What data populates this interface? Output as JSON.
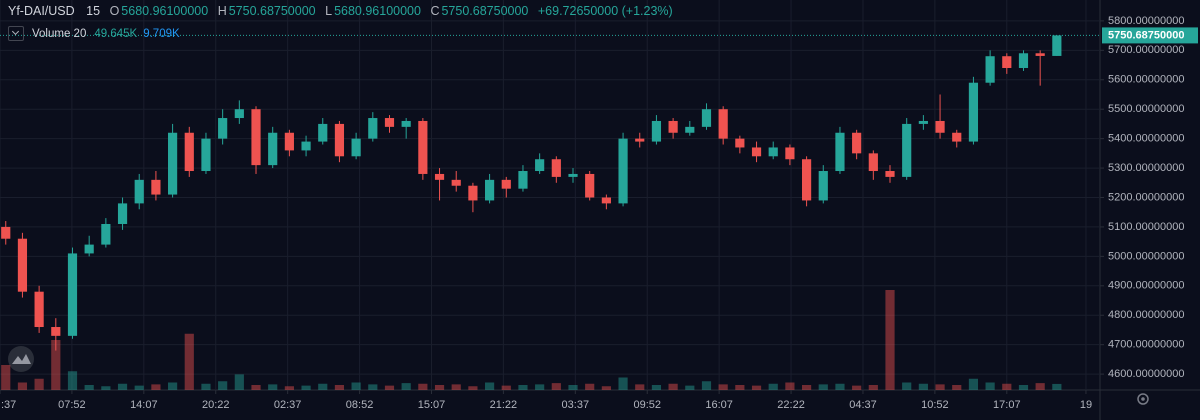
{
  "header": {
    "symbol": "Yf-DAI/USD",
    "interval": "15",
    "open_label": "O",
    "open": {
      "value": 5680.961,
      "label": "5680.96100000"
    },
    "high_label": "H",
    "high": {
      "value": 5750.6875,
      "label": "5750.68750000"
    },
    "low_label": "L",
    "low": {
      "value": 5680.961,
      "label": "5680.96100000"
    },
    "close_label": "C",
    "close": {
      "value": 5750.6875,
      "label": "5750.68750000"
    },
    "change": "+69.72650000 (+1.23%)",
    "volume_title": "Volume 20",
    "volume_ma": "49.645K",
    "volume_last": "9.709K"
  },
  "chart_data": {
    "type": "candlestick",
    "up_color": "#26a69a",
    "down_color": "#ef5350",
    "grid": true,
    "xlim": [
      0,
      95.6
    ],
    "ylim": [
      4546,
      5871
    ],
    "yticks": [
      {
        "value": 4600,
        "label": "4600.00000000"
      },
      {
        "value": 4700,
        "label": "4700.00000000"
      },
      {
        "value": 4800,
        "label": "4800.00000000"
      },
      {
        "value": 4900,
        "label": "4900.00000000"
      },
      {
        "value": 5000,
        "label": "5000.00000000"
      },
      {
        "value": 5100,
        "label": "5100.00000000"
      },
      {
        "value": 5200,
        "label": "5200.00000000"
      },
      {
        "value": 5300,
        "label": "5300.00000000"
      },
      {
        "value": 5400,
        "label": "5400.00000000"
      },
      {
        "value": 5500,
        "label": "5500.00000000"
      },
      {
        "value": 5600,
        "label": "5600.00000000"
      },
      {
        "value": 5700,
        "label": "5700.00000000"
      },
      {
        "value": 5800,
        "label": "5800.00000000"
      }
    ],
    "xticks": [
      {
        "value": 0,
        "label": ":37"
      },
      {
        "value": 6.25,
        "label": "07:52"
      },
      {
        "value": 12.5,
        "label": "14:07"
      },
      {
        "value": 18.75,
        "label": "20:22"
      },
      {
        "value": 25,
        "label": "02:37"
      },
      {
        "value": 31.25,
        "label": "08:52"
      },
      {
        "value": 37.5,
        "label": "15:07"
      },
      {
        "value": 43.75,
        "label": "21:22"
      },
      {
        "value": 50,
        "label": "03:37"
      },
      {
        "value": 56.25,
        "label": "09:52"
      },
      {
        "value": 62.5,
        "label": "16:07"
      },
      {
        "value": 68.75,
        "label": "22:22"
      },
      {
        "value": 75,
        "label": "04:37"
      },
      {
        "value": 81.25,
        "label": "10:52"
      },
      {
        "value": 87.5,
        "label": "17:07"
      },
      {
        "value": 94.38,
        "label": "19"
      }
    ],
    "last_price": {
      "value": 5750.6875,
      "label": "5750.68750000"
    },
    "x": [
      0.5,
      1.95,
      3.4,
      4.85,
      6.3,
      7.75,
      9.2,
      10.65,
      12.1,
      13.55,
      15,
      16.45,
      17.9,
      19.35,
      20.8,
      22.25,
      23.7,
      25.15,
      26.6,
      28.05,
      29.5,
      30.95,
      32.4,
      33.85,
      35.3,
      36.75,
      38.2,
      39.65,
      41.1,
      42.55,
      44,
      45.45,
      46.9,
      48.35,
      49.8,
      51.25,
      52.7,
      54.15,
      55.6,
      57.05,
      58.5,
      59.95,
      61.4,
      62.85,
      64.3,
      65.75,
      67.2,
      68.65,
      70.1,
      71.55,
      73,
      74.45,
      75.9,
      77.35,
      78.8,
      80.25,
      81.7,
      83.15,
      84.6,
      86.05,
      87.5,
      88.95,
      90.4,
      91.85
    ],
    "candles": [
      [
        5100,
        5120,
        5040,
        5060
      ],
      [
        5060,
        5080,
        4860,
        4880
      ],
      [
        4880,
        4900,
        4740,
        4760
      ],
      [
        4760,
        4790,
        4680,
        4730
      ],
      [
        4730,
        5030,
        4720,
        5010
      ],
      [
        5010,
        5070,
        5000,
        5040
      ],
      [
        5040,
        5130,
        5030,
        5110
      ],
      [
        5110,
        5200,
        5090,
        5180
      ],
      [
        5180,
        5280,
        5160,
        5260
      ],
      [
        5260,
        5290,
        5190,
        5210
      ],
      [
        5210,
        5450,
        5200,
        5420
      ],
      [
        5420,
        5440,
        5270,
        5290
      ],
      [
        5290,
        5420,
        5280,
        5400
      ],
      [
        5400,
        5500,
        5380,
        5470
      ],
      [
        5470,
        5530,
        5450,
        5500
      ],
      [
        5500,
        5510,
        5280,
        5310
      ],
      [
        5310,
        5440,
        5300,
        5420
      ],
      [
        5420,
        5430,
        5340,
        5360
      ],
      [
        5360,
        5410,
        5340,
        5390
      ],
      [
        5390,
        5470,
        5380,
        5450
      ],
      [
        5450,
        5460,
        5320,
        5340
      ],
      [
        5340,
        5420,
        5330,
        5400
      ],
      [
        5400,
        5490,
        5390,
        5470
      ],
      [
        5470,
        5480,
        5420,
        5440
      ],
      [
        5440,
        5470,
        5400,
        5460
      ],
      [
        5460,
        5470,
        5260,
        5280
      ],
      [
        5280,
        5300,
        5190,
        5260
      ],
      [
        5260,
        5290,
        5220,
        5240
      ],
      [
        5240,
        5250,
        5150,
        5190
      ],
      [
        5190,
        5280,
        5180,
        5260
      ],
      [
        5260,
        5270,
        5200,
        5230
      ],
      [
        5230,
        5310,
        5220,
        5290
      ],
      [
        5290,
        5350,
        5280,
        5330
      ],
      [
        5330,
        5340,
        5250,
        5270
      ],
      [
        5270,
        5300,
        5250,
        5280
      ],
      [
        5280,
        5290,
        5190,
        5200
      ],
      [
        5200,
        5210,
        5160,
        5180
      ],
      [
        5180,
        5420,
        5170,
        5400
      ],
      [
        5400,
        5420,
        5370,
        5390
      ],
      [
        5390,
        5480,
        5380,
        5460
      ],
      [
        5460,
        5470,
        5400,
        5420
      ],
      [
        5420,
        5460,
        5410,
        5440
      ],
      [
        5440,
        5520,
        5430,
        5500
      ],
      [
        5500,
        5510,
        5380,
        5400
      ],
      [
        5400,
        5410,
        5350,
        5370
      ],
      [
        5370,
        5390,
        5320,
        5340
      ],
      [
        5340,
        5390,
        5330,
        5370
      ],
      [
        5370,
        5380,
        5310,
        5330
      ],
      [
        5330,
        5340,
        5170,
        5190
      ],
      [
        5190,
        5310,
        5180,
        5290
      ],
      [
        5290,
        5440,
        5280,
        5420
      ],
      [
        5420,
        5430,
        5330,
        5350
      ],
      [
        5350,
        5360,
        5260,
        5290
      ],
      [
        5290,
        5310,
        5250,
        5270
      ],
      [
        5270,
        5470,
        5260,
        5450
      ],
      [
        5450,
        5480,
        5430,
        5460
      ],
      [
        5460,
        5550,
        5400,
        5420
      ],
      [
        5420,
        5430,
        5370,
        5390
      ],
      [
        5390,
        5610,
        5380,
        5590
      ],
      [
        5590,
        5700,
        5580,
        5680
      ],
      [
        5680,
        5690,
        5620,
        5640
      ],
      [
        5640,
        5700,
        5630,
        5690
      ],
      [
        5690,
        5700,
        5580,
        5680.961
      ],
      [
        5680.961,
        5750.6875,
        5680.961,
        5750.6875
      ]
    ],
    "volume": [
      40,
      12,
      18,
      80,
      30,
      8,
      6,
      10,
      7,
      9,
      12,
      90,
      10,
      14,
      25,
      8,
      9,
      6,
      7,
      10,
      8,
      12,
      9,
      7,
      11,
      10,
      8,
      9,
      6,
      12,
      7,
      8,
      9,
      11,
      8,
      10,
      6,
      20,
      9,
      8,
      10,
      7,
      14,
      9,
      8,
      7,
      10,
      12,
      8,
      9,
      10,
      7,
      8,
      160,
      12,
      10,
      9,
      8,
      18,
      12,
      10,
      8,
      11,
      9.709
    ]
  }
}
